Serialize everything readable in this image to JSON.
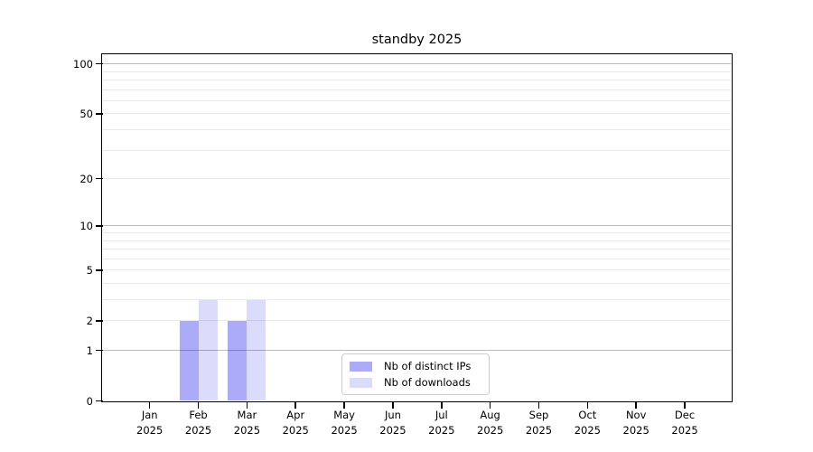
{
  "chart_data": {
    "type": "bar",
    "title": "standby 2025",
    "categories": [
      "Jan",
      "Feb",
      "Mar",
      "Apr",
      "May",
      "Jun",
      "Jul",
      "Aug",
      "Sep",
      "Oct",
      "Nov",
      "Dec"
    ],
    "x_year": "2025",
    "series": [
      {
        "name": "Nb of distinct IPs",
        "color": "rgba(0,0,230,0.33)",
        "values": [
          0,
          2,
          2,
          0,
          0,
          0,
          0,
          0,
          0,
          0,
          0,
          0
        ]
      },
      {
        "name": "Nb of downloads",
        "color": "rgba(0,0,230,0.14)",
        "values": [
          0,
          3,
          3,
          0,
          0,
          0,
          0,
          0,
          0,
          0,
          0,
          0
        ]
      }
    ],
    "y_axis": {
      "scale": "log1p",
      "max": 114.3,
      "ticks": [
        0,
        1,
        2,
        5,
        10,
        20,
        50,
        100
      ],
      "major_grid": [
        1,
        10,
        100
      ],
      "minor_grid": [
        2,
        3,
        4,
        5,
        6,
        7,
        8,
        9,
        20,
        30,
        40,
        50,
        60,
        70,
        80,
        90
      ]
    },
    "legend": {
      "position": "bottom-center"
    },
    "colors": {
      "bar_dark": "rgba(0,0,230,0.33)",
      "bar_light": "rgba(0,0,230,0.14)",
      "major_grid": "#bcbcbc",
      "minor_grid": "#e8e8e8",
      "spine": "#000000",
      "legend_border": "#cccccc"
    }
  }
}
